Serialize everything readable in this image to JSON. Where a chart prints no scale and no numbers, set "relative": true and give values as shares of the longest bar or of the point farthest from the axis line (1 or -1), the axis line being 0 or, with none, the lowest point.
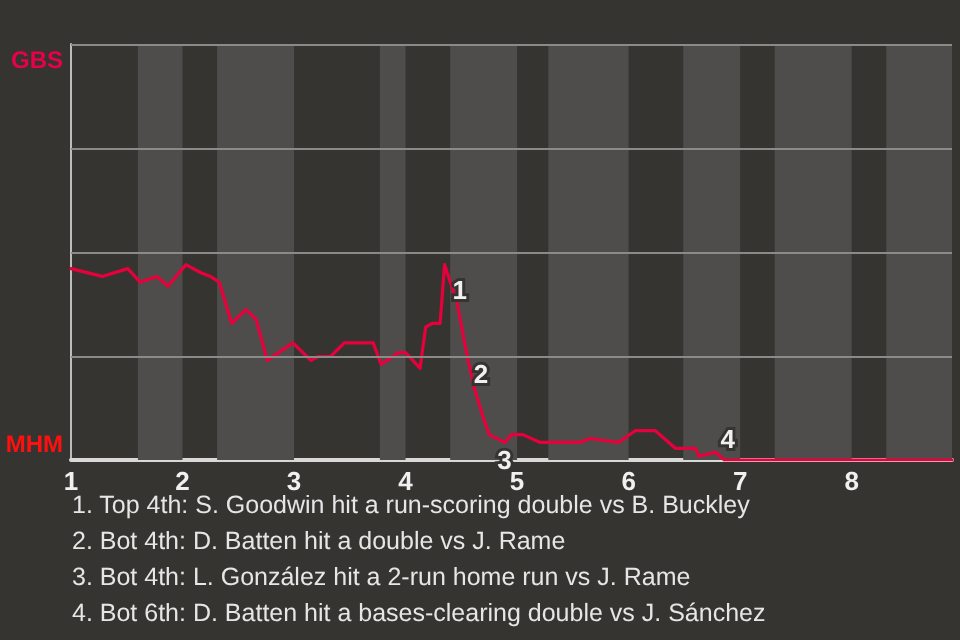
{
  "chart_data": {
    "type": "line",
    "relative": true,
    "x": [
      1.0,
      1.28,
      1.51,
      1.62,
      1.77,
      1.87,
      2.03,
      2.16,
      2.25,
      2.33,
      2.44,
      2.57,
      2.66,
      2.76,
      2.99,
      3.15,
      3.22,
      3.33,
      3.45,
      3.71,
      3.78,
      3.94,
      4.0,
      4.13,
      4.18,
      4.24,
      4.31,
      4.35,
      4.46,
      4.54,
      4.61,
      4.69,
      4.75,
      4.89,
      4.95,
      5.05,
      5.21,
      5.48,
      5.56,
      5.65,
      5.91,
      6.06,
      6.24,
      6.42,
      6.6,
      6.63,
      6.78,
      6.86,
      8.9
    ],
    "series": [
      {
        "color": "#e8003c",
        "values": [
          0.98,
          0.94,
          0.98,
          0.91,
          0.94,
          0.89,
          1,
          0.96,
          0.94,
          0.91,
          0.7,
          0.77,
          0.72,
          0.51,
          0.6,
          0.51,
          0.53,
          0.53,
          0.6,
          0.6,
          0.49,
          0.55,
          0.55,
          0.47,
          0.68,
          0.7,
          0.7,
          1,
          0.81,
          0.57,
          0.38,
          0.23,
          0.13,
          0.09,
          0.13,
          0.13,
          0.09,
          0.09,
          0.09,
          0.11,
          0.09,
          0.15,
          0.15,
          0.06,
          0.06,
          0.02,
          0.04,
          0,
          0
        ]
      }
    ],
    "xlim": [
      1,
      8.9
    ],
    "xticks": [
      1,
      2,
      3,
      4,
      5,
      6,
      7,
      8
    ],
    "ref_lines": [
      {
        "axis": "y",
        "value": 0.53,
        "color": "#8a8a88"
      },
      {
        "axis": "y",
        "value": 1.06,
        "color": "#8a8a88"
      },
      {
        "axis": "y",
        "value": 1.6,
        "color": "#8a8a88"
      },
      {
        "axis": "y",
        "value": 2.13,
        "color": "#8a8a88"
      }
    ],
    "marker": "none",
    "line_style": "solid",
    "bands": [
      {
        "axis": "x",
        "from": 1.6,
        "to": 2,
        "color": "#4e4d4b"
      },
      {
        "axis": "x",
        "from": 2.31,
        "to": 3,
        "color": "#4e4d4b"
      },
      {
        "axis": "x",
        "from": 3.77,
        "to": 4,
        "color": "#4e4d4b"
      },
      {
        "axis": "x",
        "from": 4.4,
        "to": 5,
        "color": "#4e4d4b"
      },
      {
        "axis": "x",
        "from": 5.28,
        "to": 6,
        "color": "#4e4d4b"
      },
      {
        "axis": "x",
        "from": 6.49,
        "to": 7,
        "color": "#4e4d4b"
      },
      {
        "axis": "x",
        "from": 7.31,
        "to": 8,
        "color": "#4e4d4b"
      },
      {
        "axis": "x",
        "from": 8.31,
        "to": 8.9,
        "color": "#4e4d4b"
      }
    ],
    "annotations": [
      "GBS",
      "MHM",
      {
        "text": "1",
        "x": 4.35,
        "y": 1
      },
      {
        "text": "2",
        "x": 4.54,
        "y": 0.57
      },
      {
        "text": "3",
        "x": 4.75,
        "y": 0.13
      },
      {
        "text": "4",
        "x": 6.86,
        "y": 0
      },
      "1. Top 4th: S. Goodwin hit a run-scoring double vs B. Buckley",
      "2. Bot 4th: D. Batten hit a double vs J. Rame",
      "3. Bot 4th: L. González hit a 2-run home run vs J. Rame",
      "4. Bot 6th: D. Batten hit a bases-clearing double vs J. Sánchez"
    ]
  }
}
